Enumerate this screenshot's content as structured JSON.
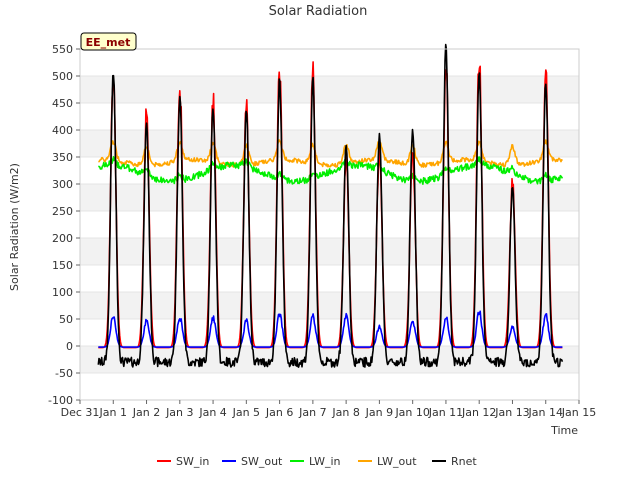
{
  "chart_data": {
    "type": "line",
    "title": "Solar Radiation",
    "xlabel": "Time",
    "ylabel": "Solar Radiation (W/m2)",
    "badge": "EE_met",
    "ylim": [
      -100,
      550
    ],
    "yticks": [
      -100,
      -50,
      0,
      50,
      100,
      150,
      200,
      250,
      300,
      350,
      400,
      450,
      500,
      550
    ],
    "xlim": [
      0,
      15
    ],
    "xticks": [
      {
        "v": 0,
        "label": "Dec 31"
      },
      {
        "v": 1,
        "label": "Jan 1"
      },
      {
        "v": 2,
        "label": "Jan 2"
      },
      {
        "v": 3,
        "label": "Jan 3"
      },
      {
        "v": 4,
        "label": "Jan 4"
      },
      {
        "v": 5,
        "label": "Jan 5"
      },
      {
        "v": 6,
        "label": "Jan 6"
      },
      {
        "v": 7,
        "label": "Jan 7"
      },
      {
        "v": 8,
        "label": "Jan 8"
      },
      {
        "v": 9,
        "label": "Jan 9"
      },
      {
        "v": 10,
        "label": "Jan 10"
      },
      {
        "v": 11,
        "label": "Jan 11"
      },
      {
        "v": 12,
        "label": "Jan 12"
      },
      {
        "v": 13,
        "label": "Jan 13"
      },
      {
        "v": 14,
        "label": "Jan 14"
      },
      {
        "v": 15,
        "label": "Jan 15"
      }
    ],
    "grid": true,
    "legend_position": "bottom",
    "series": [
      {
        "name": "SW_in",
        "color": "#ff0000",
        "peaks": [
          508,
          430,
          490,
          462,
          440,
          518,
          512,
          352,
          372,
          365,
          528,
          532,
          312,
          510
        ]
      },
      {
        "name": "SW_out",
        "color": "#0000ff",
        "peaks": [
          58,
          48,
          55,
          55,
          48,
          62,
          58,
          58,
          38,
          48,
          55,
          65,
          38,
          60
        ]
      },
      {
        "name": "LW_in",
        "color": "#00ee00",
        "min": 285,
        "max": 365,
        "typical": 320
      },
      {
        "name": "LW_out",
        "color": "#ffa500",
        "min": 320,
        "max": 405,
        "typical": 340
      },
      {
        "name": "Rnet",
        "color": "#000000",
        "peaks": [
          475,
          385,
          432,
          412,
          405,
          462,
          460,
          345,
          368,
          372,
          528,
          475,
          265,
          458
        ],
        "night": -30,
        "min": -55
      }
    ]
  }
}
